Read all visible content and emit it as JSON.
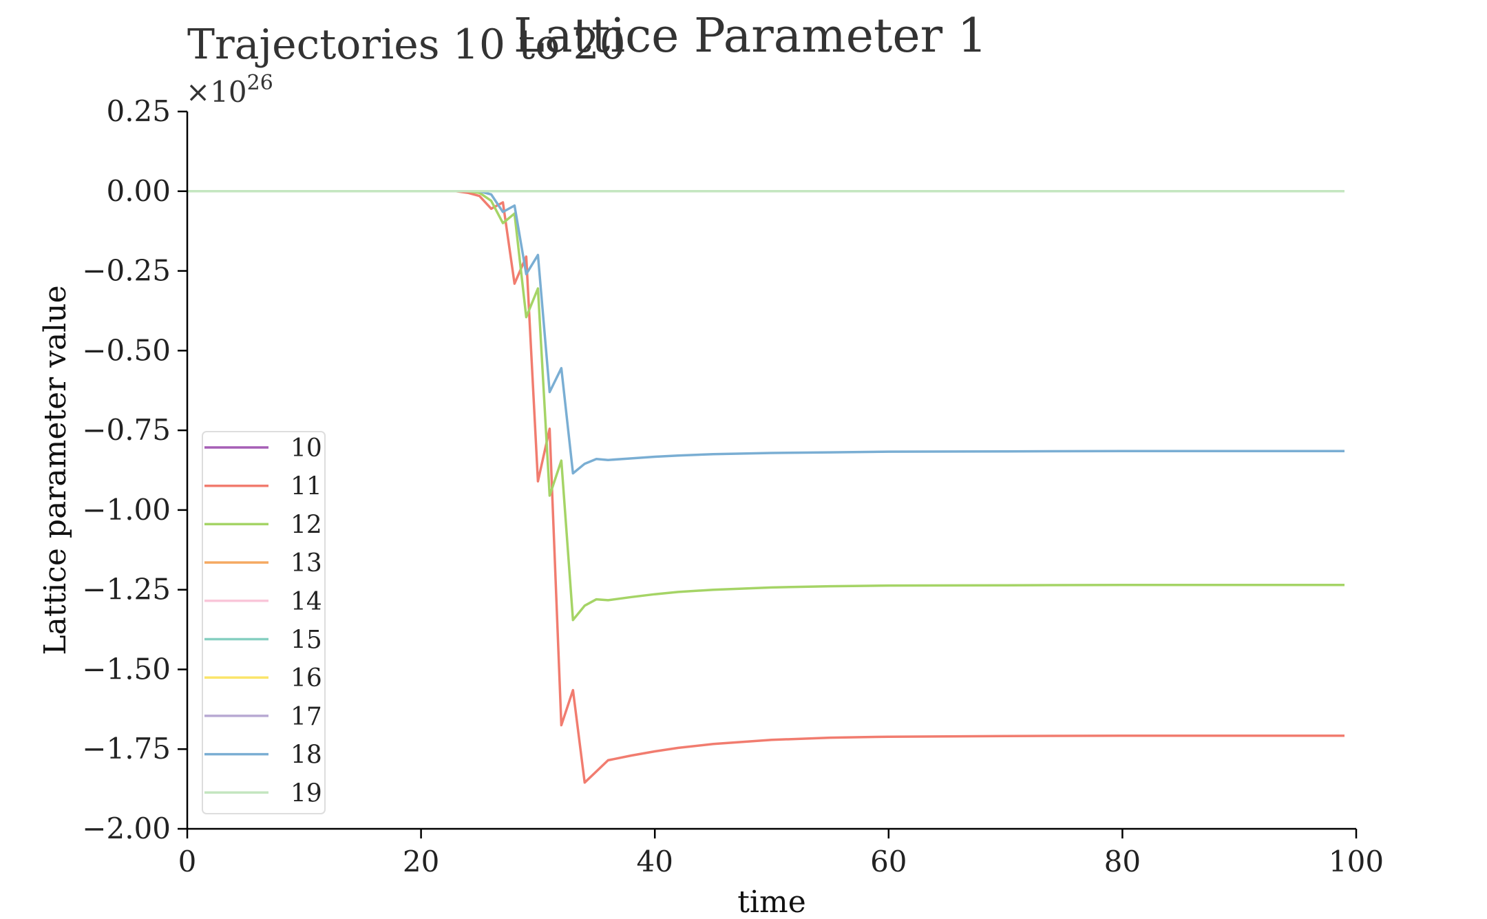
{
  "chart_data": {
    "type": "line",
    "title": "Lattice Parameter 1",
    "subtitle": "Trajectories 10 to 20",
    "xlabel": "time",
    "ylabel": "Lattice parameter value",
    "y_scale_label": "×10",
    "y_scale_exponent": "26",
    "xlim": [
      0,
      100
    ],
    "ylim": [
      -2.0,
      0.25
    ],
    "x_ticks": [
      0,
      20,
      40,
      60,
      80,
      100
    ],
    "x_tick_labels": [
      "0",
      "20",
      "40",
      "60",
      "80",
      "100"
    ],
    "y_ticks": [
      0.25,
      0.0,
      -0.25,
      -0.5,
      -0.75,
      -1.0,
      -1.25,
      -1.5,
      -1.75,
      -2.0
    ],
    "y_tick_labels": [
      "0.25",
      "0.00",
      "−0.25",
      "−0.50",
      "−0.75",
      "−1.00",
      "−1.25",
      "−1.50",
      "−1.75",
      "−2.00"
    ],
    "grid": false,
    "legend_position": "lower-left",
    "series": [
      {
        "name": "10",
        "color": "#a65fb5",
        "x": [
          0,
          99
        ],
        "y": [
          0,
          0
        ]
      },
      {
        "name": "11",
        "color": "#f17c6f",
        "x": [
          0,
          23,
          24,
          25,
          26,
          27,
          28,
          29,
          30,
          31,
          32,
          33,
          34,
          35,
          36,
          38,
          40,
          42,
          45,
          50,
          55,
          60,
          70,
          80,
          90,
          99
        ],
        "y": [
          0,
          0,
          -0.005,
          -0.015,
          -0.055,
          -0.035,
          -0.29,
          -0.205,
          -0.91,
          -0.745,
          -1.675,
          -1.565,
          -1.855,
          -1.82,
          -1.785,
          -1.77,
          -1.757,
          -1.746,
          -1.734,
          -1.721,
          -1.714,
          -1.711,
          -1.709,
          -1.708,
          -1.708,
          -1.708
        ]
      },
      {
        "name": "12",
        "color": "#a5d466",
        "x": [
          0,
          24,
          25,
          26,
          27,
          28,
          29,
          30,
          31,
          32,
          33,
          34,
          35,
          36,
          38,
          40,
          42,
          45,
          50,
          55,
          60,
          70,
          80,
          90,
          99
        ],
        "y": [
          0,
          0,
          -0.005,
          -0.03,
          -0.1,
          -0.07,
          -0.395,
          -0.305,
          -0.955,
          -0.845,
          -1.345,
          -1.3,
          -1.28,
          -1.283,
          -1.273,
          -1.264,
          -1.257,
          -1.25,
          -1.243,
          -1.239,
          -1.237,
          -1.236,
          -1.235,
          -1.235,
          -1.235
        ]
      },
      {
        "name": "13",
        "color": "#f5a962",
        "x": [
          0,
          99
        ],
        "y": [
          0,
          0
        ]
      },
      {
        "name": "14",
        "color": "#f9c6d9",
        "x": [
          0,
          99
        ],
        "y": [
          0,
          0
        ]
      },
      {
        "name": "15",
        "color": "#86cfc1",
        "x": [
          0,
          99
        ],
        "y": [
          0,
          0
        ]
      },
      {
        "name": "16",
        "color": "#fbe56b",
        "x": [
          0,
          99
        ],
        "y": [
          0,
          0
        ]
      },
      {
        "name": "17",
        "color": "#b8a9d3",
        "x": [
          0,
          99
        ],
        "y": [
          0,
          0
        ]
      },
      {
        "name": "18",
        "color": "#7aaed3",
        "x": [
          0,
          25,
          26,
          27,
          28,
          29,
          30,
          31,
          32,
          33,
          34,
          35,
          36,
          38,
          40,
          42,
          45,
          50,
          55,
          60,
          70,
          80,
          90,
          99
        ],
        "y": [
          0,
          0,
          -0.01,
          -0.065,
          -0.045,
          -0.26,
          -0.2,
          -0.63,
          -0.555,
          -0.885,
          -0.855,
          -0.84,
          -0.843,
          -0.838,
          -0.833,
          -0.829,
          -0.825,
          -0.821,
          -0.819,
          -0.817,
          -0.816,
          -0.815,
          -0.815,
          -0.815
        ]
      },
      {
        "name": "19",
        "color": "#c4e6c0",
        "x": [
          0,
          99
        ],
        "y": [
          0,
          0
        ]
      }
    ]
  }
}
